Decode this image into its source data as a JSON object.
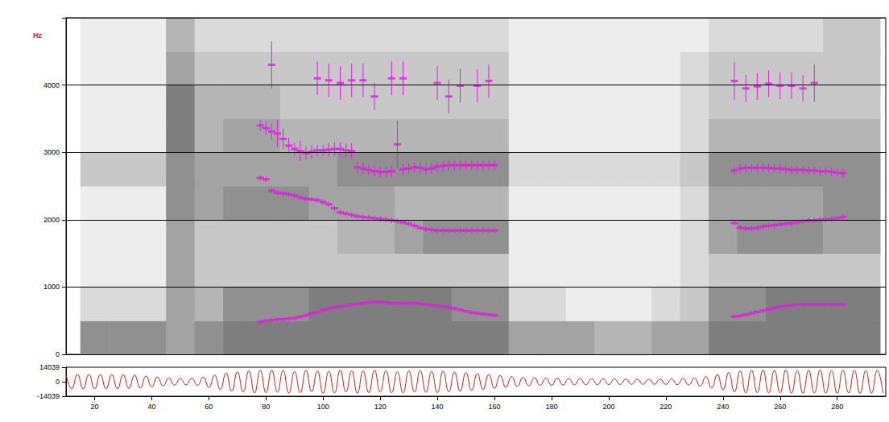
{
  "chart_data": [
    {
      "type": "spectrogram",
      "y_label": "Hz",
      "xlim": [
        10,
        297
      ],
      "ylim": [
        0,
        5000
      ],
      "yticks": [
        0,
        1000,
        2000,
        3000,
        4000
      ],
      "grid": true,
      "tick_labels": "y",
      "spectrogram": {
        "time": [
          20,
          30,
          40,
          50,
          60,
          70,
          80,
          90,
          100,
          110,
          120,
          130,
          140,
          150,
          160,
          170,
          180,
          190,
          200,
          210,
          220,
          230,
          240,
          250,
          260,
          270,
          280,
          290
        ],
        "freq": [
          250,
          750,
          1250,
          1750,
          2250,
          2750,
          3250,
          3750,
          4250,
          4750
        ],
        "intensity_range": [
          0,
          10
        ],
        "intensity": [
          [
            6,
            6,
            6,
            5,
            6,
            7,
            7,
            7,
            7,
            7,
            7,
            7,
            7,
            7,
            7,
            5,
            5,
            5,
            4,
            4,
            5,
            5,
            7,
            7,
            7,
            7,
            7,
            7
          ],
          [
            2,
            2,
            2,
            5,
            4,
            6,
            6,
            6,
            7,
            7,
            7,
            7,
            7,
            6,
            6,
            2,
            2,
            1,
            1,
            1,
            2,
            3,
            6,
            6,
            7,
            7,
            7,
            7
          ],
          [
            1,
            1,
            1,
            5,
            3,
            3,
            3,
            3,
            3,
            3,
            3,
            3,
            3,
            3,
            3,
            1,
            1,
            1,
            1,
            1,
            1,
            2,
            3,
            3,
            3,
            3,
            3,
            3
          ],
          [
            1,
            1,
            1,
            5,
            3,
            3,
            3,
            3,
            3,
            4,
            4,
            5,
            6,
            6,
            6,
            1,
            1,
            1,
            1,
            1,
            1,
            2,
            5,
            6,
            6,
            6,
            5,
            5
          ],
          [
            1,
            1,
            1,
            6,
            5,
            6,
            6,
            6,
            5,
            5,
            5,
            4,
            4,
            4,
            4,
            1,
            1,
            1,
            1,
            1,
            1,
            2,
            5,
            5,
            5,
            5,
            6,
            6
          ],
          [
            3,
            3,
            3,
            6,
            5,
            5,
            5,
            5,
            5,
            6,
            6,
            6,
            6,
            6,
            6,
            2,
            2,
            2,
            2,
            2,
            2,
            3,
            6,
            6,
            6,
            6,
            6,
            6
          ],
          [
            1,
            1,
            1,
            7,
            4,
            5,
            5,
            4,
            4,
            4,
            4,
            4,
            4,
            4,
            4,
            1,
            1,
            1,
            1,
            1,
            1,
            2,
            4,
            4,
            4,
            4,
            4,
            4
          ],
          [
            1,
            1,
            1,
            7,
            4,
            4,
            4,
            3,
            3,
            3,
            3,
            3,
            3,
            3,
            3,
            1,
            1,
            1,
            1,
            1,
            1,
            2,
            3,
            3,
            3,
            3,
            3,
            3
          ],
          [
            1,
            1,
            1,
            5,
            3,
            3,
            3,
            3,
            3,
            3,
            3,
            3,
            3,
            3,
            3,
            1,
            1,
            1,
            1,
            1,
            1,
            2,
            3,
            3,
            3,
            3,
            3,
            3
          ],
          [
            1,
            1,
            1,
            4,
            2,
            2,
            2,
            2,
            2,
            2,
            2,
            2,
            2,
            2,
            2,
            1,
            1,
            1,
            1,
            1,
            1,
            1,
            2,
            2,
            2,
            2,
            3,
            3
          ]
        ]
      },
      "x": [
        78,
        80,
        82,
        84,
        86,
        88,
        90,
        92,
        94,
        96,
        98,
        100,
        102,
        104,
        106,
        108,
        110,
        112,
        114,
        116,
        118,
        120,
        122,
        124,
        126,
        128,
        130,
        132,
        134,
        136,
        138,
        140,
        142,
        144,
        146,
        148,
        150,
        152,
        154,
        156,
        158,
        160,
        244,
        246,
        248,
        250,
        252,
        254,
        256,
        258,
        260,
        262,
        264,
        266,
        268,
        270,
        272,
        274,
        276,
        278,
        280,
        282
      ],
      "series": [
        {
          "color": "#e01ee0",
          "marker": "dash",
          "values": [
            480,
            500,
            510,
            520,
            520,
            530,
            540,
            560,
            580,
            610,
            630,
            660,
            680,
            700,
            710,
            720,
            740,
            750,
            760,
            770,
            780,
            780,
            770,
            760,
            760,
            760,
            760,
            760,
            750,
            740,
            730,
            720,
            710,
            700,
            680,
            660,
            640,
            620,
            610,
            600,
            590,
            580,
            560,
            570,
            590,
            610,
            630,
            650,
            670,
            690,
            710,
            720,
            730,
            740,
            740,
            740,
            740,
            740,
            740,
            740,
            740,
            740
          ],
          "errors": [
            30,
            30,
            30,
            30,
            30,
            30,
            30,
            30,
            30,
            30,
            30,
            30,
            30,
            30,
            30,
            30,
            30,
            30,
            30,
            30,
            30,
            30,
            30,
            30,
            30,
            30,
            30,
            30,
            30,
            30,
            30,
            30,
            30,
            30,
            30,
            30,
            30,
            30,
            30,
            30,
            30,
            30,
            30,
            30,
            30,
            30,
            30,
            30,
            30,
            30,
            30,
            30,
            30,
            30,
            30,
            30,
            30,
            30,
            30,
            30,
            30,
            30
          ]
        },
        {
          "color": "#e01ee0",
          "marker": "dash",
          "values": [
            2620,
            2600,
            2430,
            2400,
            2390,
            2380,
            2360,
            2330,
            2310,
            2300,
            2290,
            2260,
            2230,
            2170,
            2110,
            2090,
            2070,
            2050,
            2040,
            2030,
            2020,
            2010,
            2000,
            1990,
            1980,
            1960,
            1940,
            1910,
            1880,
            1860,
            1850,
            1840,
            1840,
            1840,
            1840,
            1840,
            1840,
            1840,
            1840,
            1840,
            1840,
            1840,
            1950,
            1880,
            1870,
            1870,
            1880,
            1900,
            1910,
            1920,
            1930,
            1940,
            1950,
            1960,
            1980,
            1990,
            1990,
            2000,
            2000,
            2010,
            2020,
            2040
          ],
          "errors": [
            40,
            40,
            40,
            40,
            40,
            40,
            40,
            40,
            40,
            40,
            40,
            40,
            40,
            40,
            40,
            40,
            40,
            40,
            40,
            40,
            40,
            40,
            40,
            40,
            40,
            40,
            40,
            40,
            40,
            40,
            40,
            40,
            40,
            40,
            40,
            40,
            40,
            40,
            40,
            40,
            40,
            40,
            40,
            40,
            40,
            40,
            40,
            40,
            40,
            40,
            40,
            40,
            40,
            40,
            40,
            40,
            40,
            40,
            40,
            40,
            40,
            40
          ]
        },
        {
          "color": "#e01ee0",
          "marker": "dash",
          "values": [
            3400,
            3360,
            3310,
            3280,
            3200,
            3100,
            3050,
            3020,
            2990,
            3010,
            3030,
            3030,
            3040,
            3050,
            3050,
            3030,
            3020,
            2780,
            2760,
            2740,
            2720,
            2710,
            2710,
            2720,
            3120,
            2750,
            2760,
            2780,
            2770,
            2750,
            2760,
            2790,
            2800,
            2810,
            2810,
            2810,
            2810,
            2810,
            2810,
            2810,
            2810,
            2810,
            2730,
            2760,
            2770,
            2770,
            2770,
            2770,
            2770,
            2760,
            2760,
            2750,
            2740,
            2740,
            2740,
            2730,
            2730,
            2720,
            2720,
            2710,
            2700,
            2690
          ],
          "errors": [
            80,
            100,
            120,
            200,
            150,
            120,
            100,
            150,
            100,
            100,
            80,
            80,
            100,
            100,
            100,
            100,
            120,
            80,
            80,
            80,
            80,
            80,
            80,
            80,
            350,
            80,
            80,
            80,
            80,
            80,
            80,
            80,
            80,
            80,
            80,
            80,
            80,
            80,
            80,
            80,
            80,
            80,
            60,
            60,
            60,
            60,
            60,
            60,
            60,
            60,
            60,
            60,
            60,
            60,
            60,
            60,
            60,
            60,
            60,
            60,
            60,
            60
          ]
        },
        {
          "color": "#e01ee0",
          "marker": "dash",
          "values": [
            null,
            null,
            4300,
            null,
            null,
            null,
            null,
            null,
            null,
            null,
            4100,
            null,
            4070,
            null,
            4030,
            null,
            4070,
            null,
            4070,
            null,
            3830,
            null,
            null,
            4100,
            null,
            4100,
            null,
            null,
            null,
            null,
            null,
            4030,
            null,
            3830,
            null,
            3990,
            null,
            null,
            3990,
            null,
            4060,
            null,
            4060,
            null,
            3950,
            null,
            3980,
            null,
            4020,
            null,
            3990,
            null,
            3990,
            null,
            3950,
            null,
            4030,
            null,
            null,
            null,
            null,
            null
          ],
          "errors": [
            null,
            null,
            350,
            null,
            null,
            null,
            null,
            null,
            null,
            null,
            250,
            null,
            250,
            null,
            250,
            null,
            250,
            null,
            250,
            null,
            200,
            null,
            null,
            250,
            null,
            250,
            null,
            null,
            null,
            null,
            null,
            250,
            null,
            250,
            null,
            250,
            null,
            null,
            250,
            null,
            250,
            null,
            280,
            null,
            200,
            null,
            200,
            null,
            200,
            null,
            200,
            null,
            200,
            null,
            200,
            null,
            280,
            null,
            null,
            null,
            null,
            null
          ]
        }
      ]
    },
    {
      "type": "line",
      "color": "#b8201c",
      "xlim": [
        10,
        297
      ],
      "xticks": [
        20,
        40,
        60,
        80,
        100,
        120,
        140,
        160,
        180,
        200,
        220,
        240,
        260,
        280
      ],
      "ylim": [
        -14039,
        14039
      ],
      "yticks": [
        -14039,
        0,
        14039
      ],
      "grid": false,
      "x": [
        10,
        12,
        14,
        16,
        18,
        20,
        22,
        24,
        26,
        28,
        30,
        32,
        34,
        36,
        38,
        40,
        42,
        44,
        46,
        48,
        50,
        52,
        54,
        56,
        58,
        60,
        62,
        64,
        66,
        68,
        70,
        72,
        74,
        76,
        78,
        80,
        82,
        84,
        86,
        88,
        90,
        92,
        94,
        96,
        98,
        100,
        102,
        104,
        106,
        108,
        110,
        112,
        114,
        116,
        118,
        120,
        122,
        124,
        126,
        128,
        130,
        132,
        134,
        136,
        138,
        140,
        142,
        144,
        146,
        148,
        150,
        152,
        154,
        156,
        158,
        160,
        162,
        164,
        166,
        168,
        170,
        172,
        174,
        176,
        178,
        180,
        182,
        184,
        186,
        188,
        190,
        192,
        194,
        196,
        198,
        200,
        202,
        204,
        206,
        208,
        210,
        212,
        214,
        216,
        218,
        220,
        222,
        224,
        226,
        228,
        230,
        232,
        234,
        236,
        238,
        240,
        242,
        244,
        246,
        248,
        250,
        252,
        254,
        256,
        258,
        260,
        262,
        264,
        266,
        268,
        270,
        272,
        274,
        276,
        278,
        280,
        282,
        284,
        286,
        288,
        290,
        292,
        294,
        296
      ],
      "values": [
        7000,
        -6800,
        7200,
        -7000,
        7100,
        -6900,
        7000,
        -6800,
        6900,
        -6700,
        6800,
        -6500,
        6300,
        -6000,
        5500,
        -5000,
        4500,
        -4000,
        3500,
        -3200,
        3000,
        -3000,
        3200,
        -3500,
        4500,
        -5500,
        6500,
        -7500,
        8500,
        -9000,
        9500,
        -10000,
        10500,
        -10800,
        11000,
        -10500,
        11200,
        -10000,
        10800,
        -11000,
        9800,
        -10500,
        11000,
        -9500,
        10500,
        -11000,
        10000,
        -10800,
        11200,
        -9800,
        10600,
        -11000,
        10200,
        -10500,
        11000,
        -10000,
        10800,
        -10600,
        9800,
        -10800,
        10500,
        -10000,
        10800,
        -10200,
        10000,
        -10500,
        10200,
        -9800,
        9500,
        -9200,
        9000,
        -8500,
        8000,
        -7500,
        7000,
        -6500,
        6000,
        -5500,
        5000,
        -4500,
        4200,
        -4000,
        3800,
        -3600,
        3500,
        -3400,
        3300,
        -3200,
        3100,
        -3000,
        3000,
        -2900,
        2800,
        -2800,
        2700,
        -2700,
        2600,
        -2600,
        2500,
        -2500,
        2500,
        -2400,
        2400,
        -2400,
        2500,
        -2500,
        2600,
        -2800,
        3000,
        -3200,
        3600,
        -4200,
        5000,
        -6000,
        7000,
        -8000,
        9000,
        -9800,
        10500,
        -10800,
        11000,
        -10500,
        11200,
        -10800,
        11000,
        -10600,
        11200,
        -11000,
        10800,
        -11200,
        11000,
        -10800,
        11200,
        -11000,
        10800,
        -11200,
        11000,
        -10800,
        11000,
        -11200,
        10800,
        -11000,
        11000,
        -10800
      ]
    }
  ]
}
